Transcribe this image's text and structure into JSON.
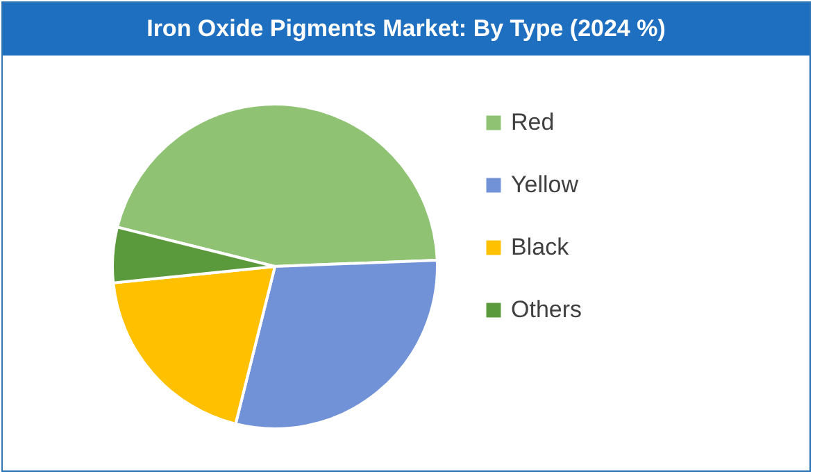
{
  "chart_data": {
    "type": "pie",
    "title": "Iron Oxide Pigments Market: By Type  (2024 %)",
    "categories": [
      "Red",
      "Yellow",
      "Black",
      "Others"
    ],
    "values": [
      45.5,
      29.5,
      19.5,
      5.5
    ],
    "colors": [
      "#8fc373",
      "#7292d8",
      "#ffc000",
      "#5b9a3c"
    ],
    "legend": "right"
  }
}
